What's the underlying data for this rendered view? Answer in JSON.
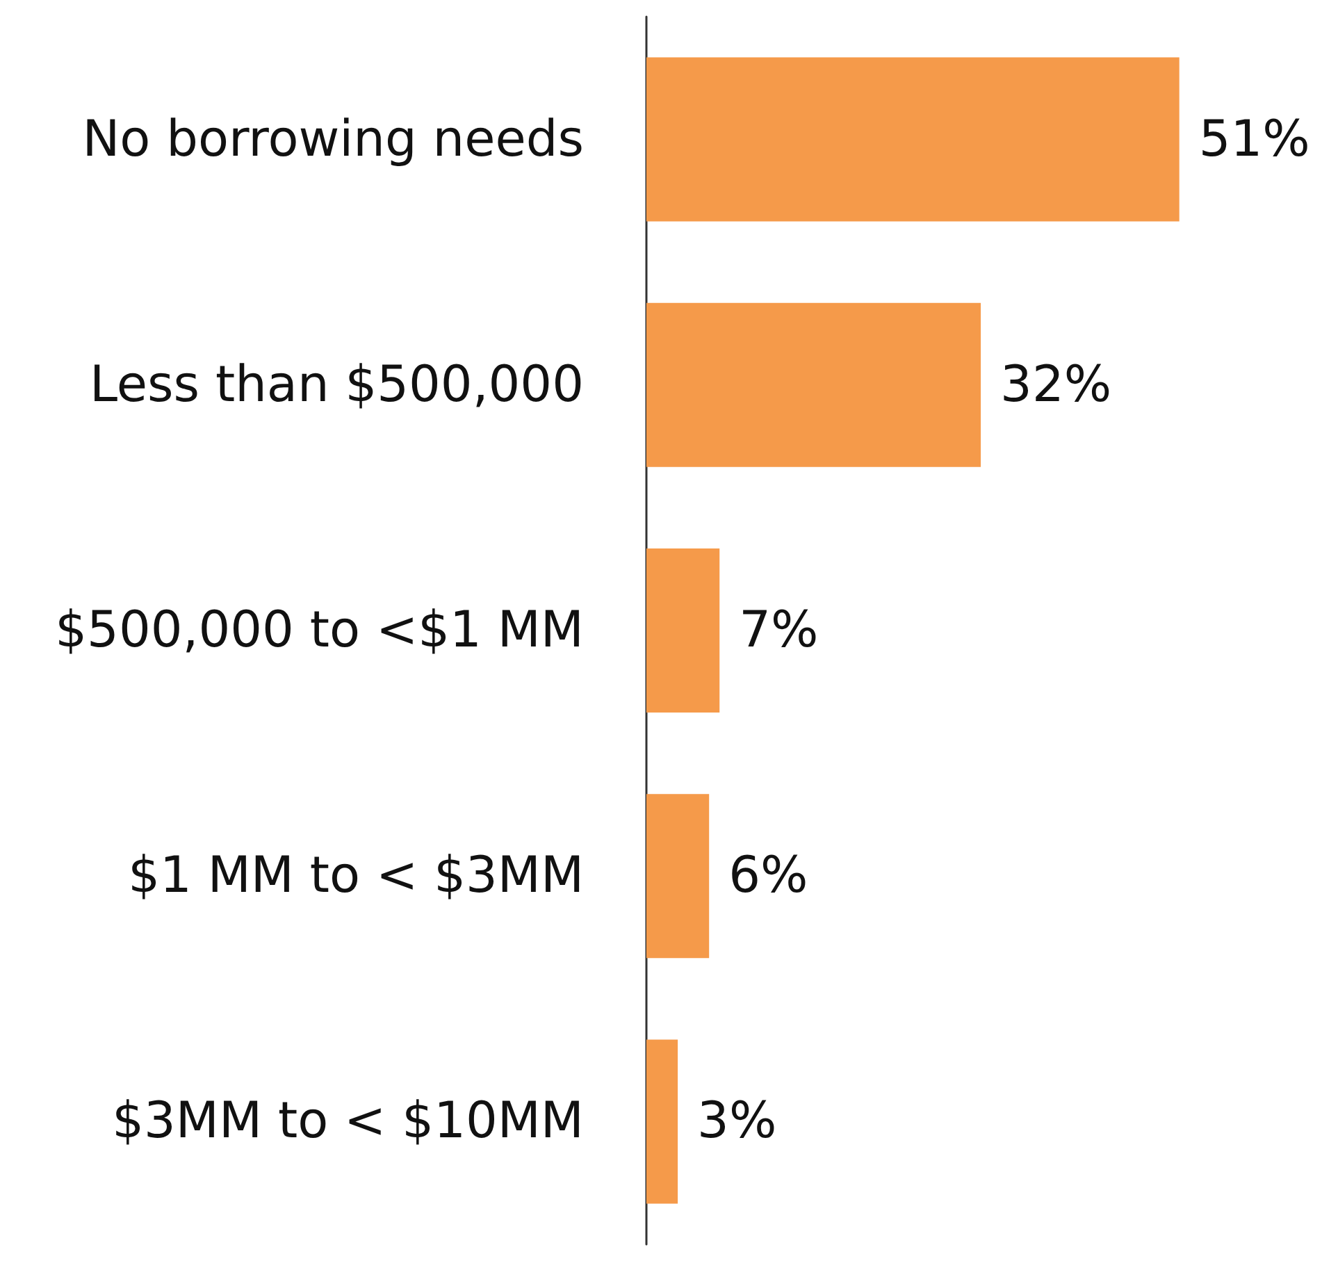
{
  "chart_data": {
    "type": "bar",
    "orientation": "horizontal",
    "categories": [
      "No borrowing needs",
      "Less than $500,000",
      "$500,000 to <$1 MM",
      "$1 MM to < $3MM",
      "$3MM to < $10MM"
    ],
    "values": [
      51,
      32,
      7,
      6,
      3
    ],
    "value_labels": [
      "51%",
      "32%",
      "7%",
      "6%",
      "3%"
    ],
    "color": "#f59a4a",
    "tick_labels": "y"
  }
}
